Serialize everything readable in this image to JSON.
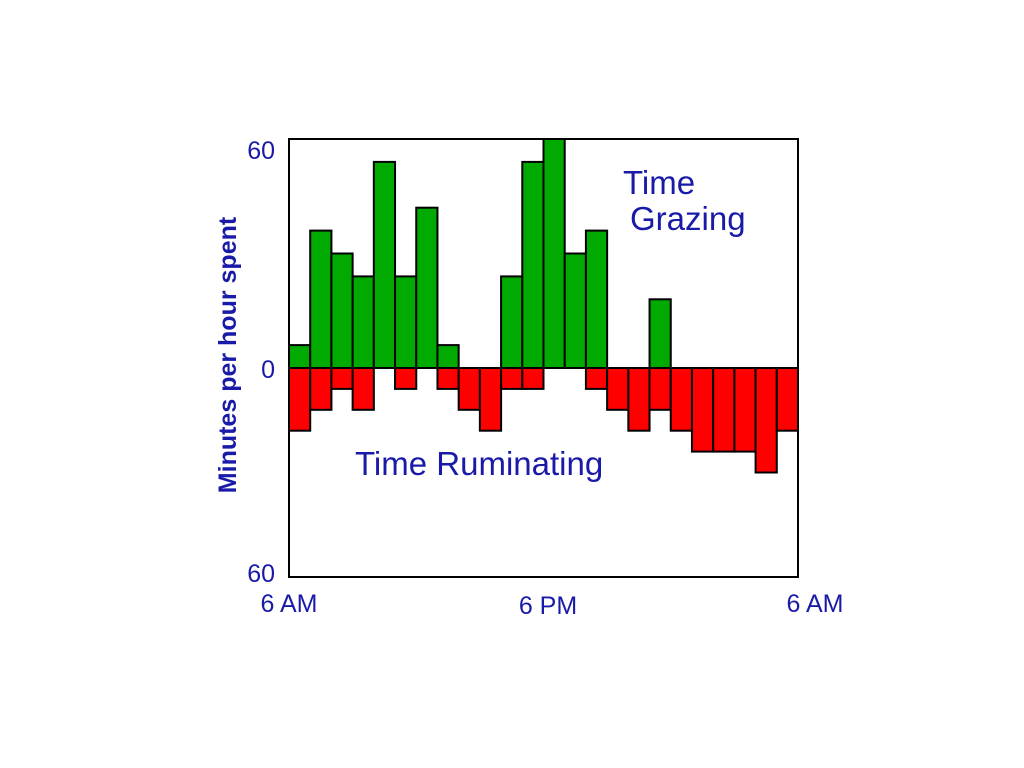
{
  "chart_data": {
    "type": "bar",
    "ylabel": "Minutes per hour spent",
    "y_ticks": [
      "60",
      "0",
      "60"
    ],
    "x_ticks": [
      "6 AM",
      "6 PM",
      "6 AM"
    ],
    "ylim": [
      -60,
      60
    ],
    "grid": false,
    "annotations": {
      "grazing_line1": "Time",
      "grazing_line2": "Grazing",
      "ruminating": "Time Ruminating"
    },
    "hours": [
      1,
      2,
      3,
      4,
      5,
      6,
      7,
      8,
      9,
      10,
      11,
      12,
      13,
      14,
      15,
      16,
      17,
      18,
      19,
      20,
      21,
      22,
      23,
      24
    ],
    "series": [
      {
        "name": "Time Grazing",
        "color": "#00aa00",
        "values": [
          6,
          36,
          30,
          24,
          54,
          24,
          42,
          6,
          0,
          0,
          24,
          54,
          60,
          30,
          36,
          0,
          0,
          18,
          0,
          0,
          0,
          0,
          0,
          0
        ]
      },
      {
        "name": "Time Ruminating",
        "color": "#ff0000",
        "values": [
          18,
          12,
          6,
          12,
          0,
          6,
          0,
          6,
          12,
          18,
          6,
          6,
          0,
          0,
          6,
          12,
          18,
          12,
          18,
          24,
          24,
          24,
          30,
          18
        ]
      }
    ]
  }
}
